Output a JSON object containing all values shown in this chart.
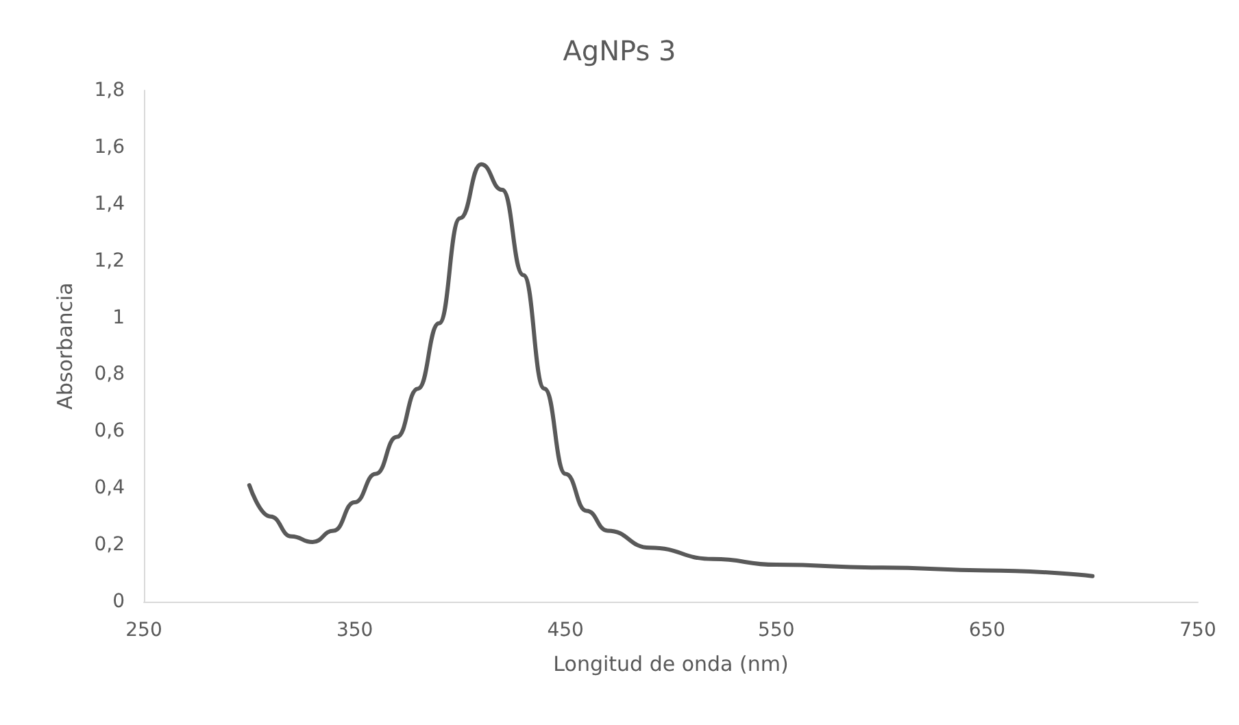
{
  "chart_data": {
    "type": "line",
    "title": "AgNPs 3",
    "xlabel": "Longitud de onda (nm)",
    "ylabel": "Absorbancia",
    "x": [
      300,
      310,
      320,
      330,
      340,
      350,
      360,
      370,
      380,
      390,
      400,
      410,
      420,
      430,
      440,
      450,
      460,
      470,
      490,
      520,
      550,
      600,
      650,
      700
    ],
    "series": [
      {
        "color": "#595959",
        "values": [
          0.41,
          0.3,
          0.23,
          0.21,
          0.25,
          0.35,
          0.45,
          0.58,
          0.75,
          0.98,
          1.35,
          1.54,
          1.45,
          1.15,
          0.75,
          0.45,
          0.32,
          0.25,
          0.19,
          0.15,
          0.13,
          0.12,
          0.11,
          0.09
        ]
      }
    ],
    "xlim": [
      250,
      750
    ],
    "xticks": [
      250,
      350,
      450,
      550,
      650,
      750
    ],
    "ylim": [
      0,
      1.8
    ],
    "yticks": [
      0,
      {
        "value": 0.2,
        "label": "0,2"
      },
      {
        "value": 0.4,
        "label": "0,4"
      },
      {
        "value": 0.6,
        "label": "0,6"
      },
      {
        "value": 0.8,
        "label": "0,8"
      },
      1,
      {
        "value": 1.2,
        "label": "1,2"
      },
      {
        "value": 1.4,
        "label": "1,4"
      },
      {
        "value": 1.6,
        "label": "1,6"
      },
      {
        "value": 1.8,
        "label": "1,8"
      }
    ],
    "grid": false,
    "marker": "none",
    "line_style": "solid"
  }
}
